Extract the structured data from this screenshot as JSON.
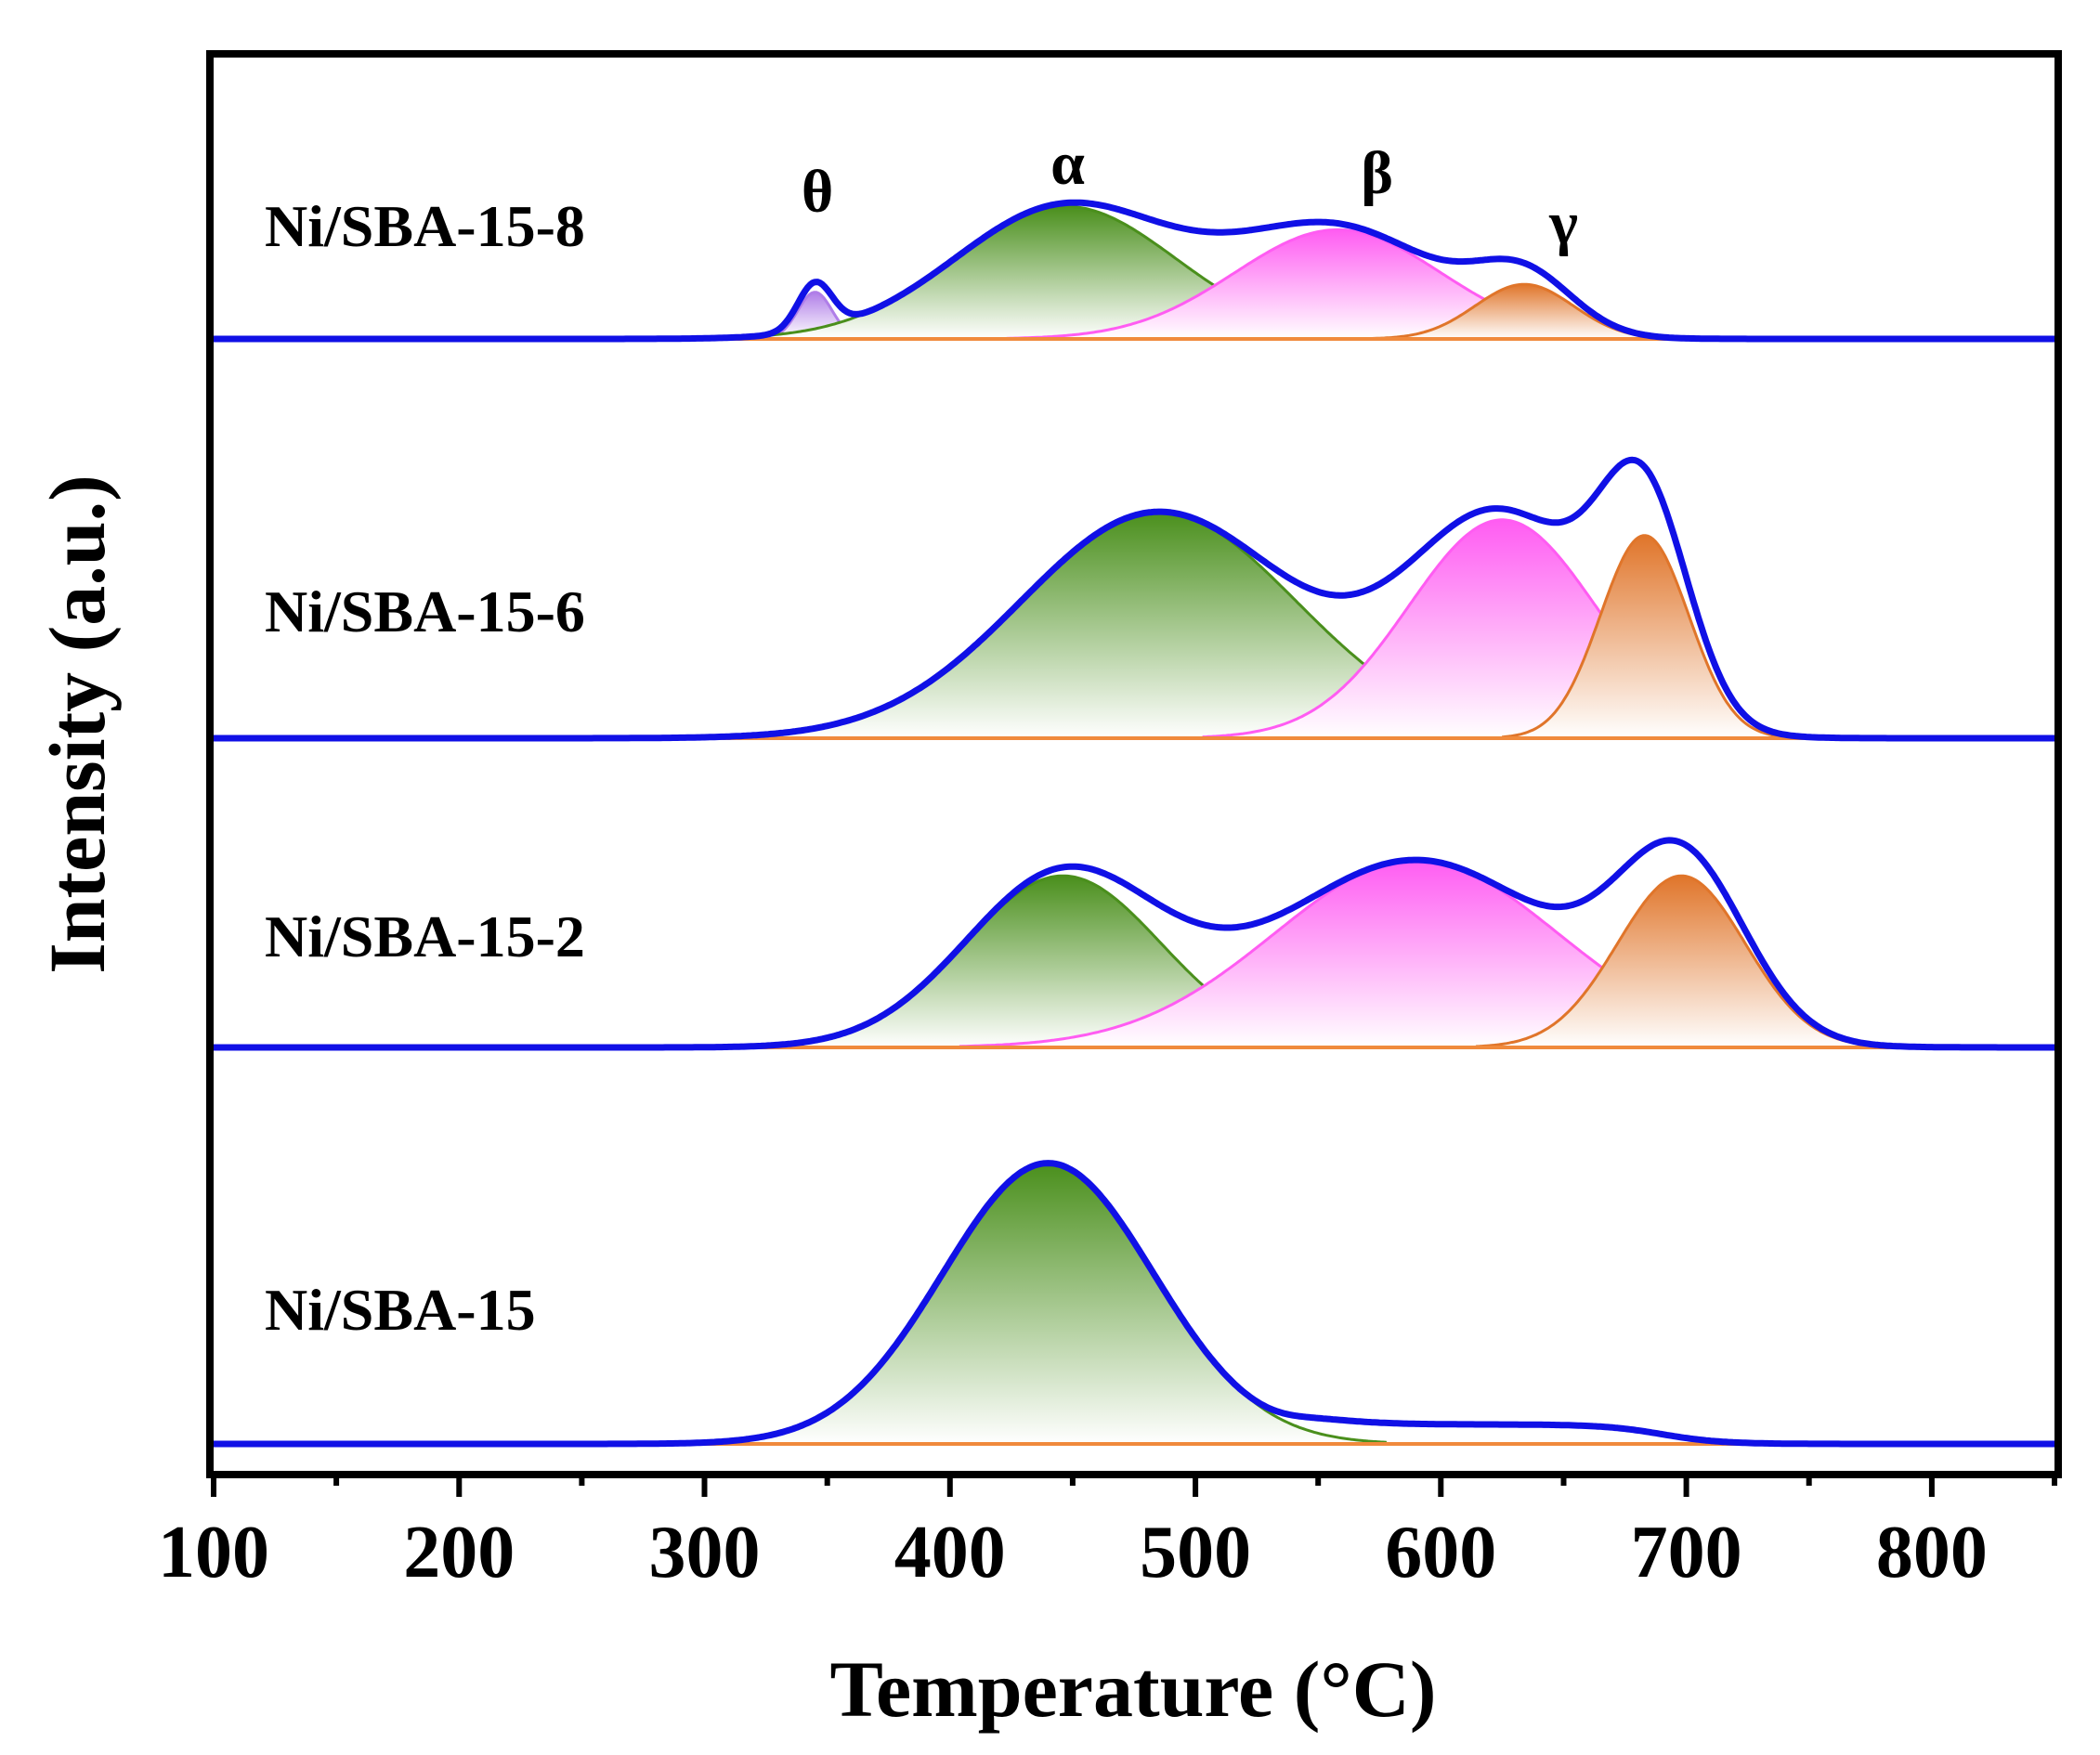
{
  "chart_data": {
    "type": "area",
    "title": "",
    "xlabel": "Temperature (°C)",
    "ylabel": "Intensity (a.u.)",
    "xlim": [
      100,
      850
    ],
    "xticks": [
      100,
      200,
      300,
      400,
      500,
      600,
      700,
      800
    ],
    "peak_labels": [
      {
        "symbol": "θ",
        "x": 346
      },
      {
        "symbol": "α",
        "x": 448
      },
      {
        "symbol": "β",
        "x": 574
      },
      {
        "symbol": "γ",
        "x": 650
      }
    ],
    "colors": {
      "envelope": "#1010e6",
      "baseline": "#f08a3c",
      "axis": "#000000",
      "theta": "#b07ee8",
      "alpha": "#4a8f1c",
      "beta": "#ff5cf2",
      "gamma": "#e0752a"
    },
    "series": [
      {
        "name": "Ni/SBA-15-8",
        "components": [
          {
            "name": "θ",
            "center": 345,
            "amplitude": 0.12,
            "width": 7
          },
          {
            "name": "α",
            "center": 447,
            "amplitude": 0.34,
            "width": 45
          },
          {
            "name": "β",
            "center": 558,
            "amplitude": 0.28,
            "width": 42
          },
          {
            "name": "γ",
            "center": 634,
            "amplitude": 0.14,
            "width": 20
          }
        ]
      },
      {
        "name": "Ni/SBA-15-6",
        "components": [
          {
            "name": "α",
            "center": 485,
            "amplitude": 0.58,
            "width": 56
          },
          {
            "name": "β",
            "center": 625,
            "amplitude": 0.56,
            "width": 38
          },
          {
            "name": "γ",
            "center": 683,
            "amplitude": 0.52,
            "width": 18
          }
        ]
      },
      {
        "name": "Ni/SBA-15-2",
        "components": [
          {
            "name": "α",
            "center": 446,
            "amplitude": 0.44,
            "width": 40
          },
          {
            "name": "β",
            "center": 590,
            "amplitude": 0.48,
            "width": 58
          },
          {
            "name": "γ",
            "center": 698,
            "amplitude": 0.44,
            "width": 26
          }
        ]
      },
      {
        "name": "Ni/SBA-15",
        "components": [
          {
            "name": "α",
            "center": 440,
            "amplitude": 0.72,
            "width": 43
          }
        ],
        "tail": {
          "start": 540,
          "end": 690,
          "amplitude": 0.05
        }
      }
    ]
  }
}
